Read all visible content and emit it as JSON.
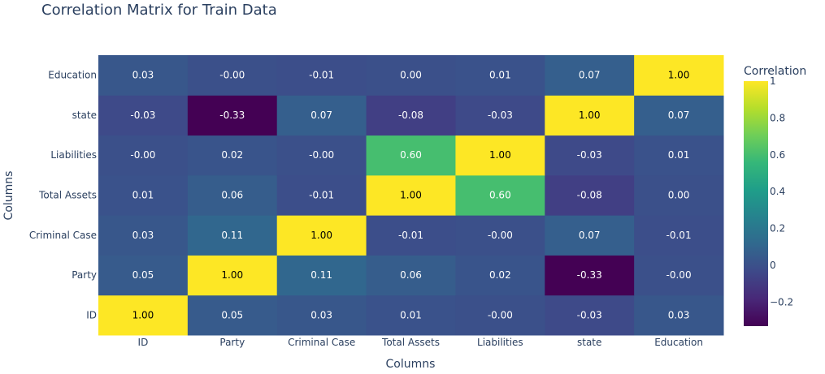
{
  "chart_data": {
    "type": "heatmap",
    "title": "Correlation Matrix for Train Data",
    "xlabel": "Columns",
    "ylabel": "Columns",
    "x_categories": [
      "ID",
      "Party",
      "Criminal Case",
      "Total Assets",
      "Liabilities",
      "state",
      "Education"
    ],
    "y_categories": [
      "ID",
      "Party",
      "Criminal Case",
      "Total Assets",
      "Liabilities",
      "state",
      "Education"
    ],
    "values": [
      [
        1.0,
        0.05,
        0.03,
        0.01,
        -0.0,
        -0.03,
        0.03
      ],
      [
        0.05,
        1.0,
        0.11,
        0.06,
        0.02,
        -0.33,
        -0.0
      ],
      [
        0.03,
        0.11,
        1.0,
        -0.01,
        -0.0,
        0.07,
        -0.01
      ],
      [
        0.01,
        0.06,
        -0.01,
        1.0,
        0.6,
        -0.08,
        0.0
      ],
      [
        -0.0,
        0.02,
        -0.0,
        0.6,
        1.0,
        -0.03,
        0.01
      ],
      [
        -0.03,
        -0.33,
        0.07,
        -0.08,
        -0.03,
        1.0,
        0.07
      ],
      [
        0.03,
        -0.0,
        -0.01,
        0.0,
        0.01,
        0.07,
        1.0
      ]
    ],
    "value_labels": [
      [
        "1.00",
        "0.05",
        "0.03",
        "0.01",
        "-0.00",
        "-0.03",
        "0.03"
      ],
      [
        "0.05",
        "1.00",
        "0.11",
        "0.06",
        "0.02",
        "-0.33",
        "-0.00"
      ],
      [
        "0.03",
        "0.11",
        "1.00",
        "-0.01",
        "-0.00",
        "0.07",
        "-0.01"
      ],
      [
        "0.01",
        "0.06",
        "-0.01",
        "1.00",
        "0.60",
        "-0.08",
        "0.00"
      ],
      [
        "-0.00",
        "0.02",
        "-0.00",
        "0.60",
        "1.00",
        "-0.03",
        "0.01"
      ],
      [
        "-0.03",
        "-0.33",
        "0.07",
        "-0.08",
        "-0.03",
        "1.00",
        "0.07"
      ],
      [
        "0.03",
        "-0.00",
        "-0.01",
        "0.00",
        "0.01",
        "0.07",
        "1.00"
      ]
    ],
    "colorscale": "viridis",
    "zmin": -0.33,
    "zmax": 1.0,
    "colorbar": {
      "title": "Correlation",
      "tickvals": [
        -0.2,
        0,
        0.2,
        0.4,
        0.6,
        0.8,
        1
      ],
      "ticktext": [
        "−0.2",
        "0",
        "0.2",
        "0.4",
        "0.6",
        "0.8",
        "1"
      ]
    }
  }
}
